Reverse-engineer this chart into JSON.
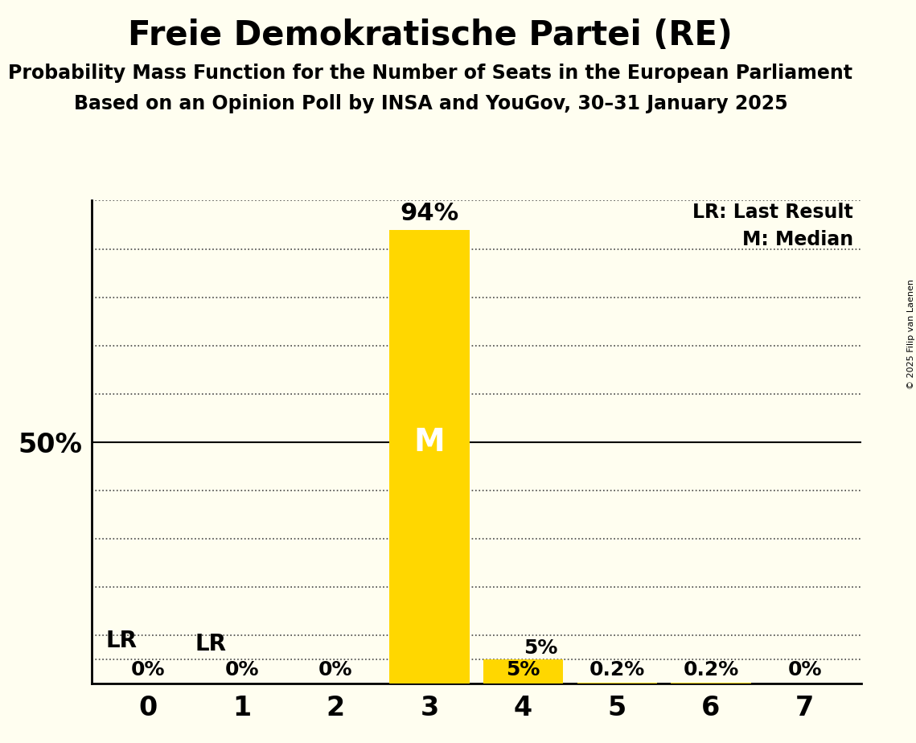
{
  "title": "Freie Demokratische Partei (RE)",
  "subtitle1": "Probability Mass Function for the Number of Seats in the European Parliament",
  "subtitle2": "Based on an Opinion Poll by INSA and YouGov, 30–31 January 2025",
  "copyright": "© 2025 Filip van Laenen",
  "categories": [
    0,
    1,
    2,
    3,
    4,
    5,
    6,
    7
  ],
  "values": [
    0.0,
    0.0,
    0.0,
    94.0,
    5.0,
    0.2,
    0.2,
    0.0
  ],
  "bar_labels_below": [
    "0%",
    "0%",
    "0%",
    "",
    "5%",
    "0.2%",
    "0.2%",
    "0%"
  ],
  "bar_color": "#FFD700",
  "background_color": "#FFFEF0",
  "ylim": [
    0,
    100
  ],
  "yticks_dotted": [
    10,
    20,
    30,
    40,
    60,
    70,
    80,
    90
  ],
  "ytick_solid": 50,
  "y50_label": "50%",
  "lr_y": 5.0,
  "lr_label": "LR",
  "lr_x": 0,
  "median_bar": 3,
  "median_label": "M",
  "top_label_3": "94%",
  "top_label_4": "5%",
  "legend_lr": "LR: Last Result",
  "legend_m": "M: Median",
  "bar_width": 0.85,
  "xlim": [
    -0.6,
    7.6
  ]
}
